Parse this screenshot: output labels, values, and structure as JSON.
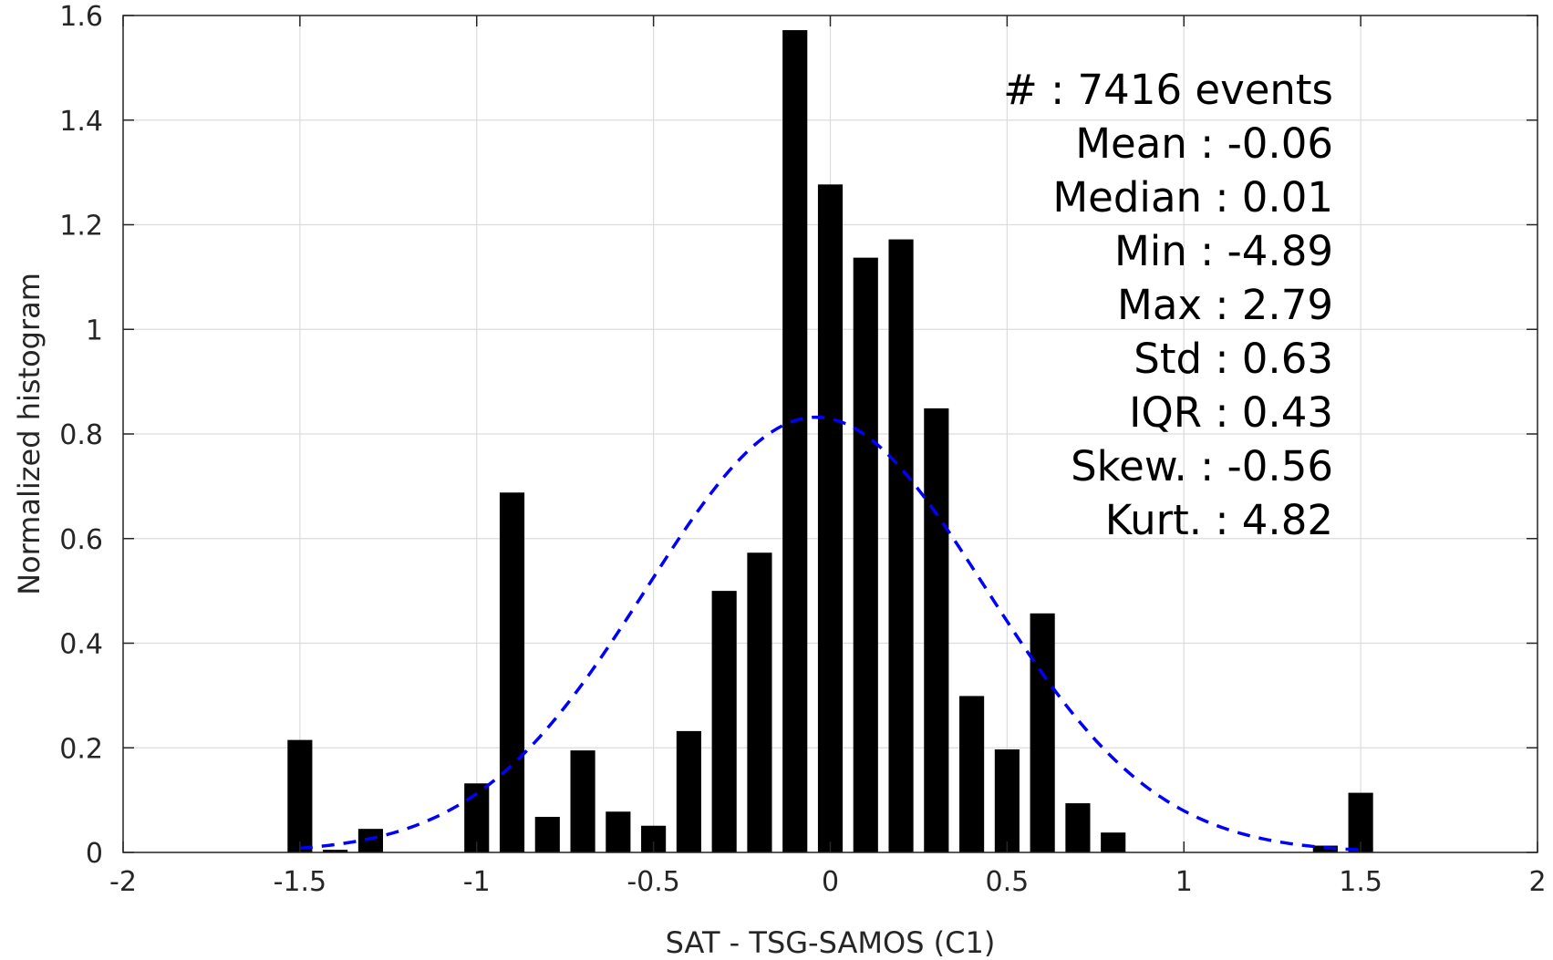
{
  "chart_data": {
    "type": "bar",
    "xlabel": "SAT - TSG-SAMOS (C1)",
    "ylabel": "Normalized histogram",
    "xlim": [
      -2,
      2
    ],
    "ylim": [
      0,
      1.6
    ],
    "grid": true,
    "x_ticks": [
      "-2",
      "-1.5",
      "-1",
      "-0.5",
      "0",
      "0.5",
      "1",
      "1.5",
      "2"
    ],
    "y_ticks": [
      "0",
      "0.2",
      "0.4",
      "0.6",
      "0.8",
      "1",
      "1.2",
      "1.4",
      "1.6"
    ],
    "bar_width": 0.07,
    "bars": [
      {
        "x": -1.5,
        "value": 0.215
      },
      {
        "x": -1.4,
        "value": 0.005
      },
      {
        "x": -1.3,
        "value": 0.045
      },
      {
        "x": -1.0,
        "value": 0.132
      },
      {
        "x": -0.9,
        "value": 0.688
      },
      {
        "x": -0.8,
        "value": 0.068
      },
      {
        "x": -0.7,
        "value": 0.195
      },
      {
        "x": -0.6,
        "value": 0.078
      },
      {
        "x": -0.5,
        "value": 0.051
      },
      {
        "x": -0.4,
        "value": 0.232
      },
      {
        "x": -0.3,
        "value": 0.5
      },
      {
        "x": -0.2,
        "value": 0.573
      },
      {
        "x": -0.1,
        "value": 1.572
      },
      {
        "x": 0.0,
        "value": 1.277
      },
      {
        "x": 0.1,
        "value": 1.137
      },
      {
        "x": 0.2,
        "value": 1.172
      },
      {
        "x": 0.3,
        "value": 0.849
      },
      {
        "x": 0.4,
        "value": 0.299
      },
      {
        "x": 0.5,
        "value": 0.197
      },
      {
        "x": 0.6,
        "value": 0.457
      },
      {
        "x": 0.7,
        "value": 0.094
      },
      {
        "x": 0.8,
        "value": 0.038
      },
      {
        "x": 1.4,
        "value": 0.013
      },
      {
        "x": 1.5,
        "value": 0.114
      }
    ],
    "fit_curve": {
      "type": "normal",
      "mean": -0.04,
      "std": 0.48,
      "peak": 0.832,
      "x_range": [
        -1.5,
        1.5
      ],
      "color": "#0000ff",
      "style": "dashed"
    },
    "bar_color": "#000000",
    "stats_box": {
      "lines": [
        "#  : 7416 events",
        "Mean : -0.06",
        "Median : 0.01",
        "Min : -4.89",
        "Max : 2.79",
        "Std : 0.63",
        "IQR : 0.43",
        "Skew. : -0.56",
        "Kurt. : 4.82"
      ]
    }
  }
}
